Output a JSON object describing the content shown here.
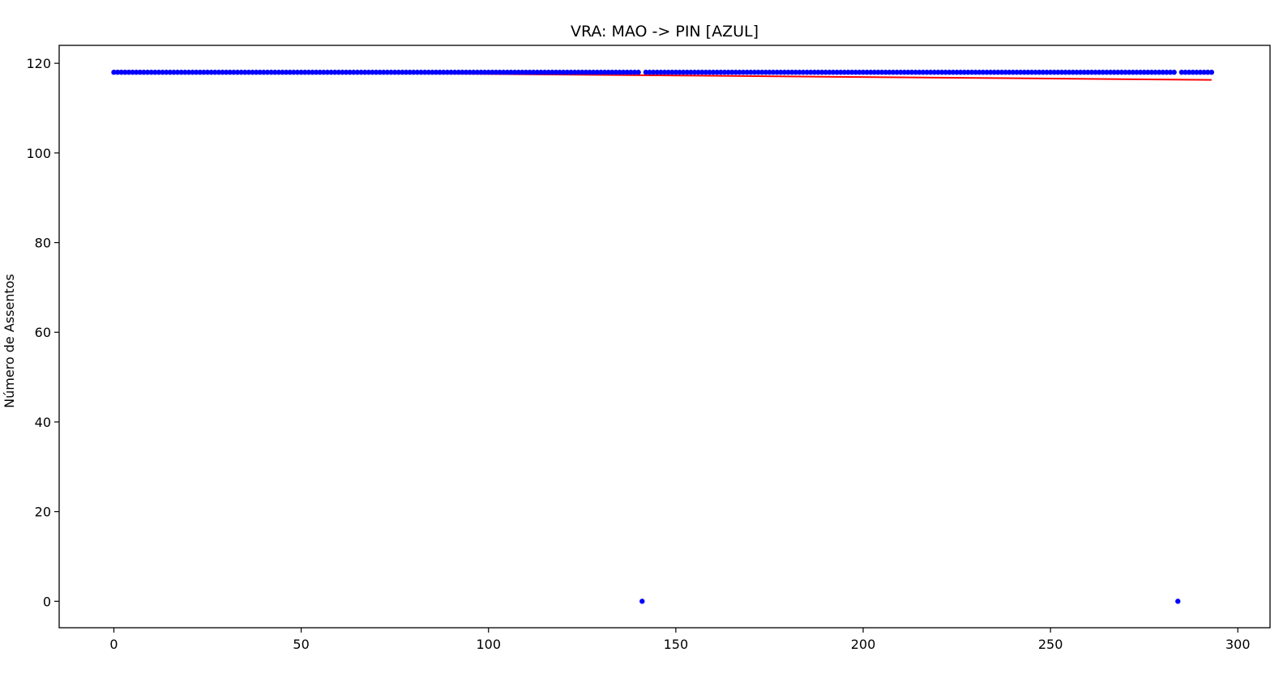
{
  "chart_data": {
    "type": "scatter",
    "title": "VRA: MAO -> PIN [AZUL]",
    "xlabel": "",
    "ylabel": "Número de Assentos",
    "xlim": [
      -14.6,
      308.6
    ],
    "ylim": [
      -5.9,
      124.0
    ],
    "x_ticks": [
      0,
      50,
      100,
      150,
      200,
      250,
      300
    ],
    "y_ticks": [
      0,
      20,
      40,
      60,
      80,
      100,
      120
    ],
    "grid": false,
    "legend": "none",
    "colors": {
      "points": "#0000ff",
      "trend": "#ff0000"
    },
    "series": [
      {
        "kind": "points",
        "x_start": 0,
        "x_end": 293,
        "default_y": 118,
        "exceptions": [
          {
            "x": 141,
            "y": 0
          },
          {
            "x": 284,
            "y": 0
          }
        ]
      },
      {
        "kind": "trend_line",
        "points": [
          {
            "x": 0,
            "y": 118.3
          },
          {
            "x": 293,
            "y": 116.3
          }
        ]
      }
    ]
  }
}
